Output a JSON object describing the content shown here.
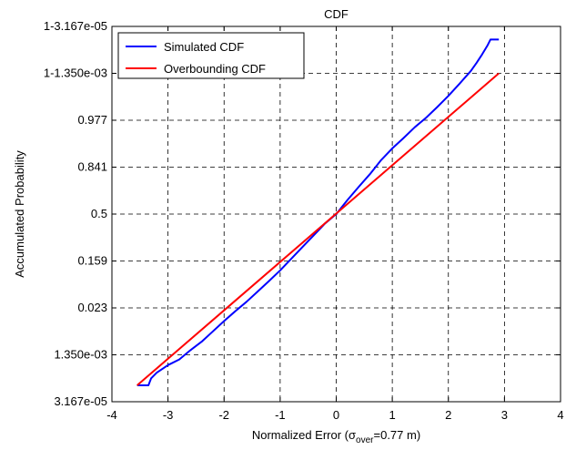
{
  "chart_data": {
    "type": "line",
    "title": "CDF",
    "xlabel": {
      "prefix": "Normalized Error (",
      "sigma": "σ",
      "subscript": "over",
      "suffix": "=0.77 m)"
    },
    "ylabel": "Accumulated Probability",
    "xlim": [
      -4,
      4
    ],
    "x_ticks": [
      -4,
      -3,
      -2,
      -1,
      0,
      1,
      2,
      3,
      4
    ],
    "y_scale": "normal-probability (ticks at ±0, 1, 2, 3, 4 sigma)",
    "y_ticks_sigma": [
      -4,
      -3,
      -2,
      -1,
      0,
      1,
      2,
      3,
      4
    ],
    "y_tick_labels": [
      "3.167e-05",
      "1.350e-03",
      "0.023",
      "0.159",
      "0.5",
      "0.841",
      "0.977",
      "1-1.350e-03",
      "1-3.167e-05"
    ],
    "grid": true,
    "legend_position": "top-left",
    "series": [
      {
        "name": "Simulated CDF",
        "color": "#0000ff",
        "x": [
          -3.55,
          -3.35,
          -3.3,
          -3.2,
          -3.1,
          -3.0,
          -2.8,
          -2.6,
          -2.4,
          -2.2,
          -2.0,
          -1.8,
          -1.6,
          -1.4,
          -1.2,
          -1.0,
          -0.8,
          -0.6,
          -0.4,
          -0.2,
          0.0,
          0.2,
          0.4,
          0.6,
          0.8,
          1.0,
          1.2,
          1.4,
          1.6,
          1.8,
          2.0,
          2.2,
          2.4,
          2.5,
          2.6,
          2.7,
          2.75,
          2.9
        ],
        "y_sigma": [
          -3.65,
          -3.65,
          -3.5,
          -3.38,
          -3.3,
          -3.22,
          -3.1,
          -2.9,
          -2.72,
          -2.5,
          -2.28,
          -2.07,
          -1.87,
          -1.65,
          -1.43,
          -1.2,
          -0.95,
          -0.7,
          -0.45,
          -0.2,
          0.0,
          0.3,
          0.58,
          0.85,
          1.15,
          1.4,
          1.62,
          1.85,
          2.05,
          2.28,
          2.52,
          2.78,
          3.05,
          3.22,
          3.4,
          3.6,
          3.72,
          3.72
        ]
      },
      {
        "name": "Overbounding CDF",
        "color": "#ff0000",
        "x": [
          -3.55,
          2.9
        ],
        "y_sigma": [
          -3.65,
          3.0
        ]
      }
    ]
  }
}
